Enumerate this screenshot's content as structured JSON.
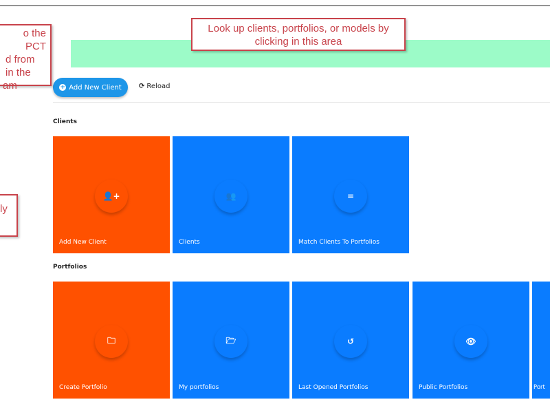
{
  "callouts": {
    "left_top": [
      "o the PCT",
      "d from",
      "in the",
      "am"
    ],
    "left_mid": "ly",
    "top": "Look up clients, portfolios, or models by clicking in this area"
  },
  "toolbar": {
    "add_client": "Add New Client",
    "reload": "Reload"
  },
  "sections": {
    "clients": {
      "title": "Clients",
      "tiles": [
        {
          "label": "Add New Client",
          "icon": "user-plus-icon",
          "glyph": "👤+",
          "color": "#ff5100"
        },
        {
          "label": "Clients",
          "icon": "users-icon",
          "glyph": "👥",
          "color": "#0a7cff"
        },
        {
          "label": "Match Clients To Portfolios",
          "icon": "equals-icon",
          "glyph": "=",
          "color": "#0a7cff"
        }
      ]
    },
    "portfolios": {
      "title": "Portfolios",
      "tiles": [
        {
          "label": "Create Portfolio",
          "icon": "folder-plus-icon",
          "glyph": "🗀",
          "color": "#ff5100"
        },
        {
          "label": "My portfolios",
          "icon": "folder-open-icon",
          "glyph": "🗁",
          "color": "#0a7cff"
        },
        {
          "label": "Last Opened Portfolios",
          "icon": "history-icon",
          "glyph": "↺",
          "color": "#0a7cff"
        },
        {
          "label": "Public Portfolios",
          "icon": "eye-icon",
          "glyph": "👁",
          "color": "#0a7cff"
        },
        {
          "label": "Port",
          "icon": "",
          "glyph": "",
          "color": "#0a7cff"
        }
      ]
    }
  }
}
